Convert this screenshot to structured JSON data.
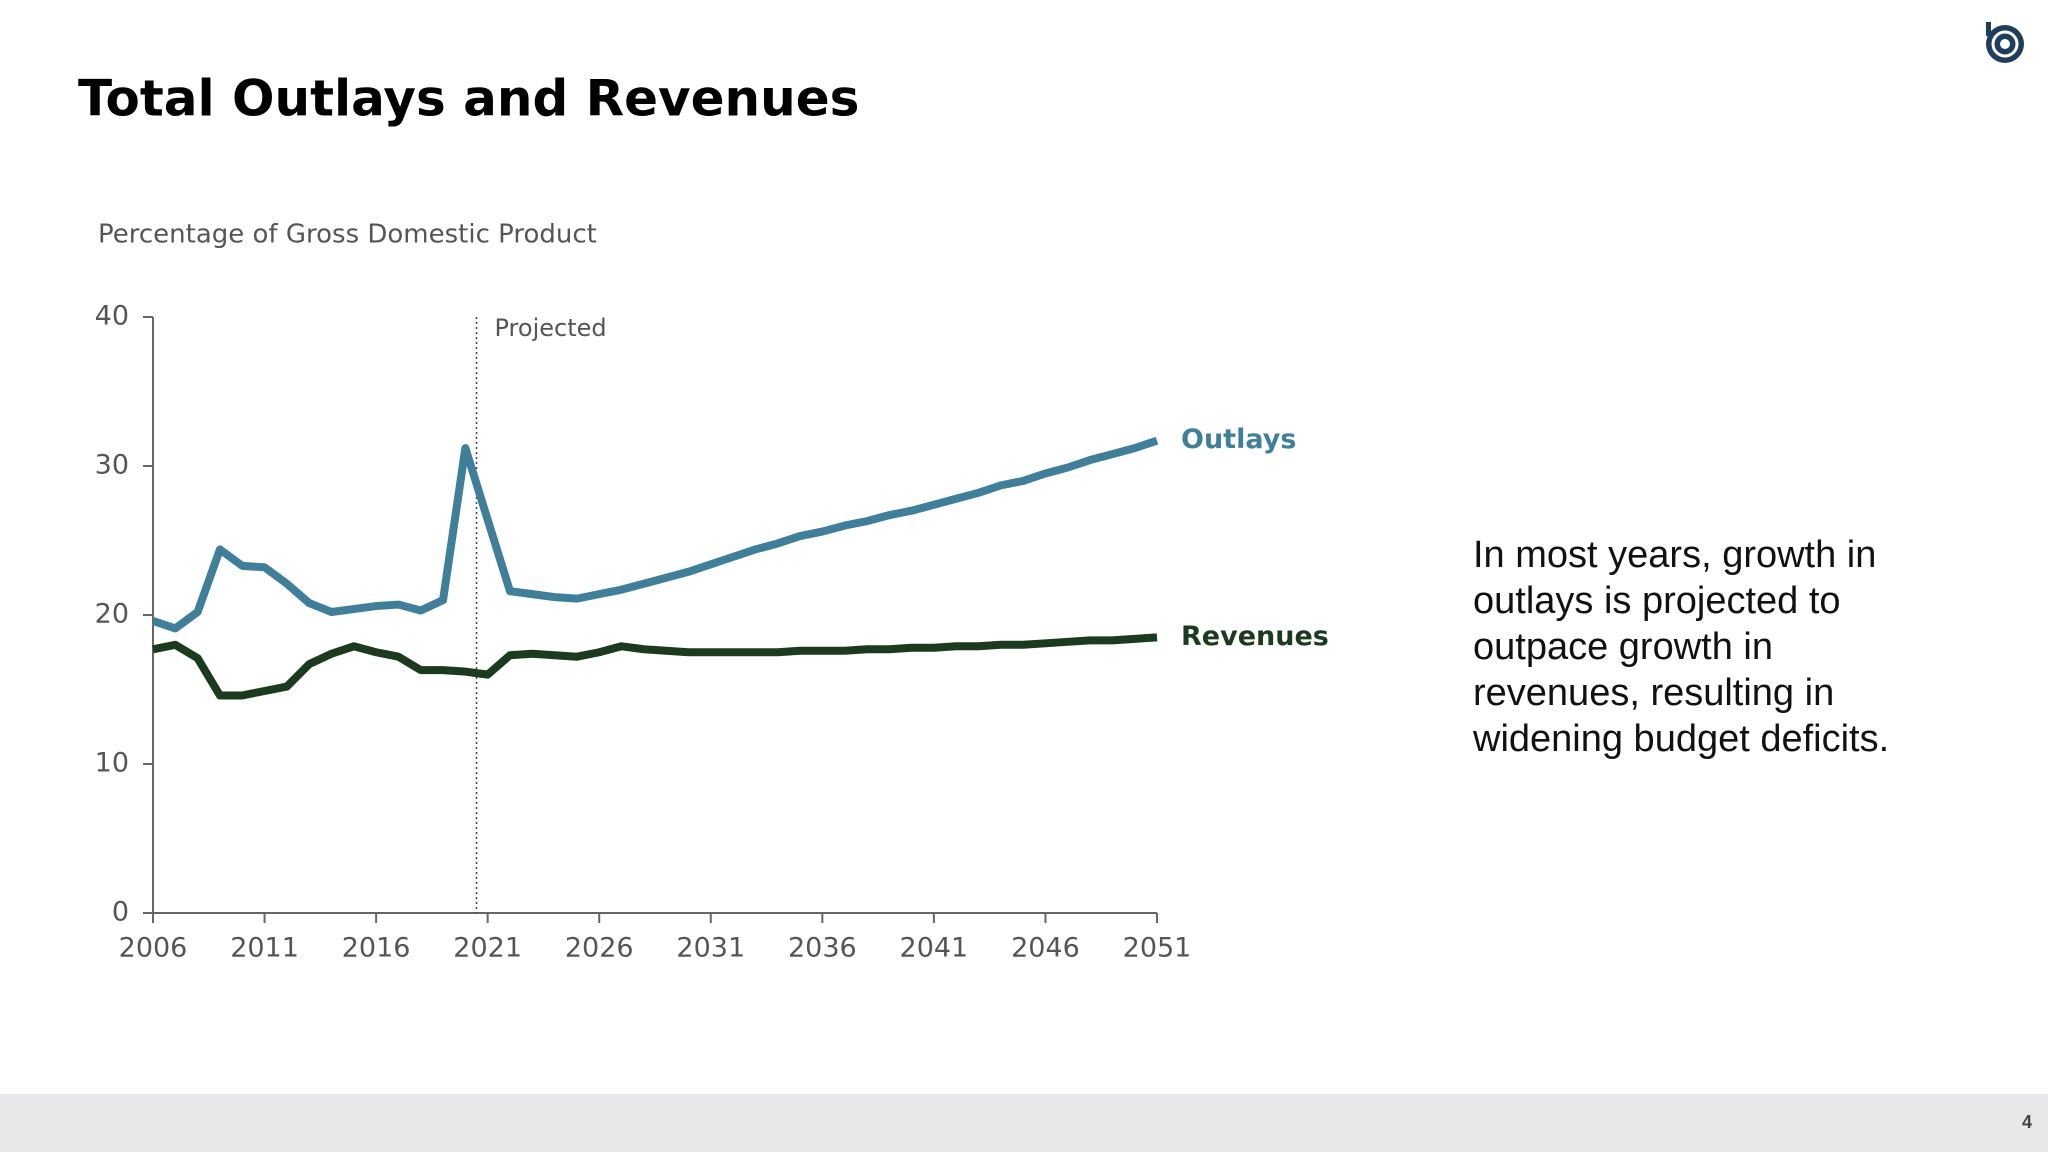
{
  "chart_data": {
    "type": "line",
    "title": "Total Outlays and Revenues",
    "ylabel": "Percentage of Gross Domestic Product",
    "x": [
      2006,
      2007,
      2008,
      2009,
      2010,
      2011,
      2012,
      2013,
      2014,
      2015,
      2016,
      2017,
      2018,
      2019,
      2020,
      2021,
      2022,
      2023,
      2024,
      2025,
      2026,
      2027,
      2028,
      2029,
      2030,
      2031,
      2032,
      2033,
      2034,
      2035,
      2036,
      2037,
      2038,
      2039,
      2040,
      2041,
      2042,
      2043,
      2044,
      2045,
      2046,
      2047,
      2048,
      2049,
      2050,
      2051
    ],
    "series": [
      {
        "name": "Outlays",
        "color": "#3f7f99",
        "values": [
          19.6,
          19.1,
          20.2,
          24.4,
          23.3,
          23.2,
          22.1,
          20.8,
          20.2,
          20.4,
          20.6,
          20.7,
          20.3,
          21.0,
          31.2,
          26.4,
          21.6,
          21.4,
          21.2,
          21.1,
          21.4,
          21.7,
          22.1,
          22.5,
          22.9,
          23.4,
          23.9,
          24.4,
          24.8,
          25.3,
          25.6,
          26.0,
          26.3,
          26.7,
          27.0,
          27.4,
          27.8,
          28.2,
          28.7,
          29.0,
          29.5,
          29.9,
          30.4,
          30.8,
          31.2,
          31.7
        ]
      },
      {
        "name": "Revenues",
        "color": "#1c3a1e",
        "values": [
          17.7,
          18.0,
          17.1,
          14.6,
          14.6,
          14.9,
          15.2,
          16.7,
          17.4,
          17.9,
          17.5,
          17.2,
          16.3,
          16.3,
          16.2,
          16.0,
          17.3,
          17.4,
          17.3,
          17.2,
          17.5,
          17.9,
          17.7,
          17.6,
          17.5,
          17.5,
          17.5,
          17.5,
          17.5,
          17.6,
          17.6,
          17.6,
          17.7,
          17.7,
          17.8,
          17.8,
          17.9,
          17.9,
          18.0,
          18.0,
          18.1,
          18.2,
          18.3,
          18.3,
          18.4,
          18.5
        ]
      }
    ],
    "xlim": [
      2006,
      2051
    ],
    "xticks": [
      2006,
      2011,
      2016,
      2021,
      2026,
      2031,
      2036,
      2041,
      2046,
      2051
    ],
    "ylim": [
      0,
      40
    ],
    "yticks": [
      0,
      10,
      20,
      30,
      40
    ],
    "annotations": [
      {
        "text": "Projected",
        "x": 2020.5
      }
    ]
  },
  "slide": {
    "body": "In most years, growth in outlays is projected to outpace growth in revenues, resulting in widening budget deficits.",
    "page_number": "4"
  }
}
